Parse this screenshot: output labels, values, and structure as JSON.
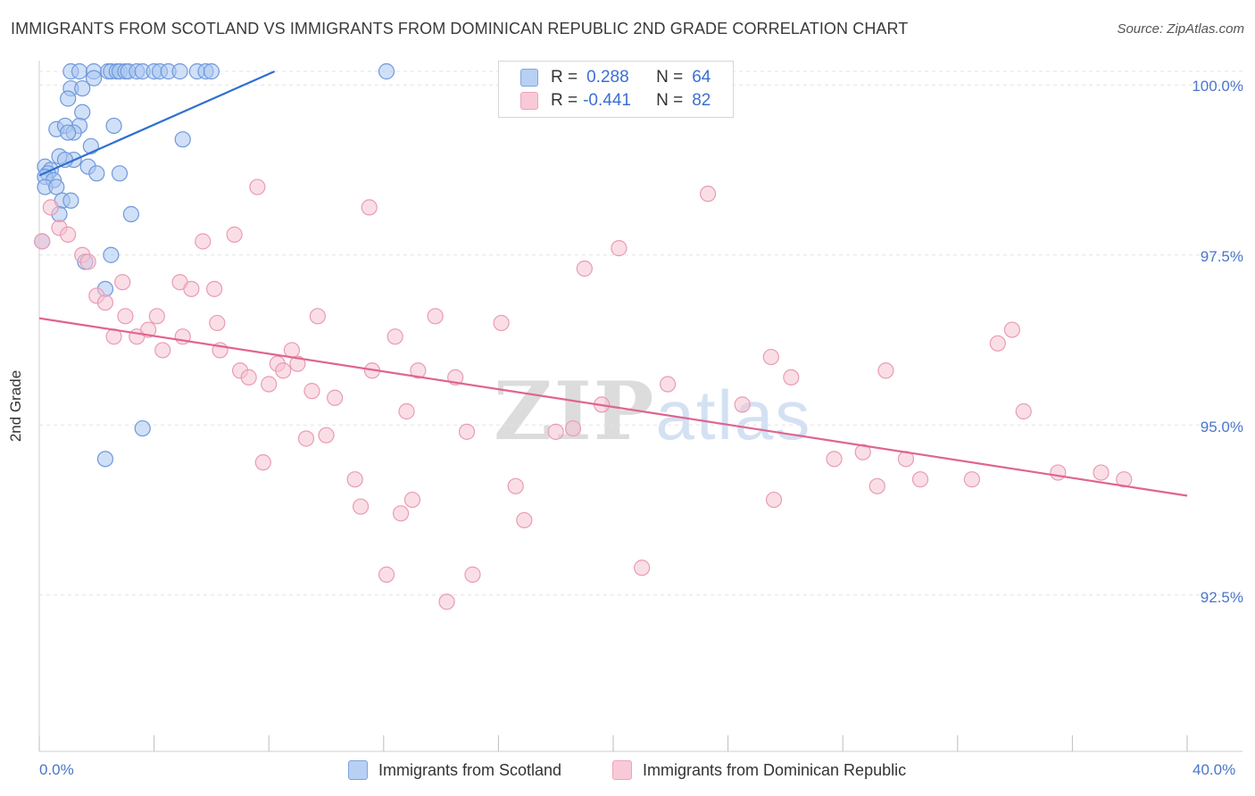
{
  "title": "IMMIGRANTS FROM SCOTLAND VS IMMIGRANTS FROM DOMINICAN REPUBLIC 2ND GRADE CORRELATION CHART",
  "source": "Source: ZipAtlas.com",
  "watermark": {
    "zip": "ZIP",
    "atlas": "atlas"
  },
  "legend": {
    "rows": [
      {
        "r_label": "R =",
        "r_value": "0.288",
        "n_label": "N =",
        "n_value": "64"
      },
      {
        "r_label": "R =",
        "r_value": "-0.441",
        "n_label": "N =",
        "n_value": "82"
      }
    ]
  },
  "chart_data": {
    "type": "scatter",
    "title": "IMMIGRANTS FROM SCOTLAND VS IMMIGRANTS FROM DOMINICAN REPUBLIC 2ND GRADE CORRELATION CHART",
    "xlabel": "",
    "ylabel": "2nd Grade",
    "xlim": [
      0,
      40
    ],
    "ylim": [
      90.2,
      100.2
    ],
    "x_tick_labels": [
      "0.0%",
      "40.0%"
    ],
    "y_ticks": [
      92.5,
      95.0,
      97.5,
      100.0
    ],
    "y_tick_labels": [
      "92.5%",
      "95.0%",
      "97.5%",
      "100.0%"
    ],
    "grid": "horizontal dashed",
    "legend_position": "top-center",
    "colors": {
      "scotland_fill": "#a9c6f0",
      "scotland_edge": "#6f98dc",
      "scotland_line": "#2f6fd0",
      "dominican_fill": "#f6c2d2",
      "dominican_edge": "#ea9bb5",
      "dominican_line": "#e0648f"
    },
    "series": [
      {
        "name": "Immigrants from Scotland",
        "trend": {
          "x": [
            0.0,
            8.2
          ],
          "y": [
            98.67,
            100.2
          ]
        },
        "points": [
          [
            1.1,
            100.2
          ],
          [
            1.4,
            100.2
          ],
          [
            1.9,
            100.2
          ],
          [
            2.4,
            100.2
          ],
          [
            2.5,
            100.2
          ],
          [
            2.7,
            100.2
          ],
          [
            2.8,
            100.2
          ],
          [
            3.0,
            100.2
          ],
          [
            3.1,
            100.2
          ],
          [
            3.4,
            100.2
          ],
          [
            3.6,
            100.2
          ],
          [
            4.0,
            100.2
          ],
          [
            4.2,
            100.2
          ],
          [
            4.5,
            100.2
          ],
          [
            4.9,
            100.2
          ],
          [
            5.5,
            100.2
          ],
          [
            5.8,
            100.2
          ],
          [
            6.0,
            100.2
          ],
          [
            12.1,
            100.2
          ],
          [
            1.9,
            100.1
          ],
          [
            1.1,
            99.95
          ],
          [
            1.5,
            99.95
          ],
          [
            1.0,
            99.8
          ],
          [
            1.5,
            99.6
          ],
          [
            1.4,
            99.4
          ],
          [
            2.6,
            99.4
          ],
          [
            0.6,
            99.35
          ],
          [
            0.9,
            99.4
          ],
          [
            1.2,
            99.3
          ],
          [
            1.0,
            99.3
          ],
          [
            5.0,
            99.2
          ],
          [
            1.8,
            99.1
          ],
          [
            0.7,
            98.95
          ],
          [
            1.2,
            98.9
          ],
          [
            0.9,
            98.9
          ],
          [
            0.2,
            98.8
          ],
          [
            0.4,
            98.75
          ],
          [
            0.3,
            98.7
          ],
          [
            0.2,
            98.65
          ],
          [
            0.5,
            98.6
          ],
          [
            0.2,
            98.5
          ],
          [
            0.6,
            98.5
          ],
          [
            1.7,
            98.8
          ],
          [
            2.0,
            98.7
          ],
          [
            2.8,
            98.7
          ],
          [
            0.8,
            98.3
          ],
          [
            1.1,
            98.3
          ],
          [
            0.7,
            98.1
          ],
          [
            3.2,
            98.1
          ],
          [
            0.1,
            97.7
          ],
          [
            2.5,
            97.5
          ],
          [
            1.6,
            97.4
          ],
          [
            2.3,
            97.0
          ],
          [
            3.6,
            94.95
          ],
          [
            2.3,
            94.5
          ]
        ]
      },
      {
        "name": "Immigrants from Dominican Republic",
        "trend": {
          "x": [
            0.0,
            40.0
          ],
          "y": [
            96.57,
            93.96
          ]
        },
        "points": [
          [
            0.1,
            97.7
          ],
          [
            0.4,
            98.2
          ],
          [
            0.7,
            97.9
          ],
          [
            1.0,
            97.8
          ],
          [
            1.5,
            97.5
          ],
          [
            1.7,
            97.4
          ],
          [
            2.0,
            96.9
          ],
          [
            2.3,
            96.8
          ],
          [
            2.6,
            96.3
          ],
          [
            3.0,
            96.6
          ],
          [
            2.9,
            97.1
          ],
          [
            3.4,
            96.3
          ],
          [
            3.8,
            96.4
          ],
          [
            4.1,
            96.6
          ],
          [
            4.3,
            96.1
          ],
          [
            4.9,
            97.1
          ],
          [
            5.0,
            96.3
          ],
          [
            5.3,
            97.0
          ],
          [
            5.7,
            97.7
          ],
          [
            6.1,
            97.0
          ],
          [
            6.2,
            96.5
          ],
          [
            6.3,
            96.1
          ],
          [
            6.8,
            97.8
          ],
          [
            7.0,
            95.8
          ],
          [
            7.3,
            95.7
          ],
          [
            7.6,
            98.5
          ],
          [
            7.8,
            94.45
          ],
          [
            8.0,
            95.6
          ],
          [
            8.3,
            95.9
          ],
          [
            8.5,
            95.8
          ],
          [
            8.8,
            96.1
          ],
          [
            9.0,
            95.9
          ],
          [
            9.3,
            94.8
          ],
          [
            9.5,
            95.5
          ],
          [
            9.7,
            96.6
          ],
          [
            10.0,
            94.85
          ],
          [
            10.3,
            95.4
          ],
          [
            11.0,
            94.2
          ],
          [
            11.2,
            93.8
          ],
          [
            11.6,
            95.8
          ],
          [
            12.1,
            92.8
          ],
          [
            12.4,
            96.3
          ],
          [
            12.6,
            93.7
          ],
          [
            12.8,
            95.2
          ],
          [
            13.0,
            93.9
          ],
          [
            13.2,
            95.8
          ],
          [
            13.8,
            96.6
          ],
          [
            14.2,
            92.4
          ],
          [
            14.5,
            95.7
          ],
          [
            14.9,
            94.9
          ],
          [
            15.1,
            92.8
          ],
          [
            16.1,
            96.5
          ],
          [
            16.6,
            94.1
          ],
          [
            16.9,
            93.6
          ],
          [
            11.5,
            98.2
          ],
          [
            18.0,
            94.9
          ],
          [
            18.6,
            94.95
          ],
          [
            19.0,
            97.3
          ],
          [
            19.6,
            95.3
          ],
          [
            20.2,
            97.6
          ],
          [
            21.0,
            92.9
          ],
          [
            21.9,
            95.6
          ],
          [
            23.3,
            98.4
          ],
          [
            24.5,
            95.3
          ],
          [
            25.5,
            96.0
          ],
          [
            25.6,
            93.9
          ],
          [
            26.2,
            95.7
          ],
          [
            27.7,
            94.5
          ],
          [
            28.7,
            94.6
          ],
          [
            29.2,
            94.1
          ],
          [
            29.5,
            95.8
          ],
          [
            30.2,
            94.5
          ],
          [
            30.7,
            94.2
          ],
          [
            32.5,
            94.2
          ],
          [
            33.4,
            96.2
          ],
          [
            33.9,
            96.4
          ],
          [
            34.3,
            95.2
          ],
          [
            35.5,
            94.3
          ],
          [
            37.0,
            94.3
          ],
          [
            37.8,
            94.2
          ]
        ]
      }
    ]
  },
  "bottom_legend": [
    {
      "label": "Immigrants from Scotland"
    },
    {
      "label": "Immigrants from Dominican Republic"
    }
  ]
}
